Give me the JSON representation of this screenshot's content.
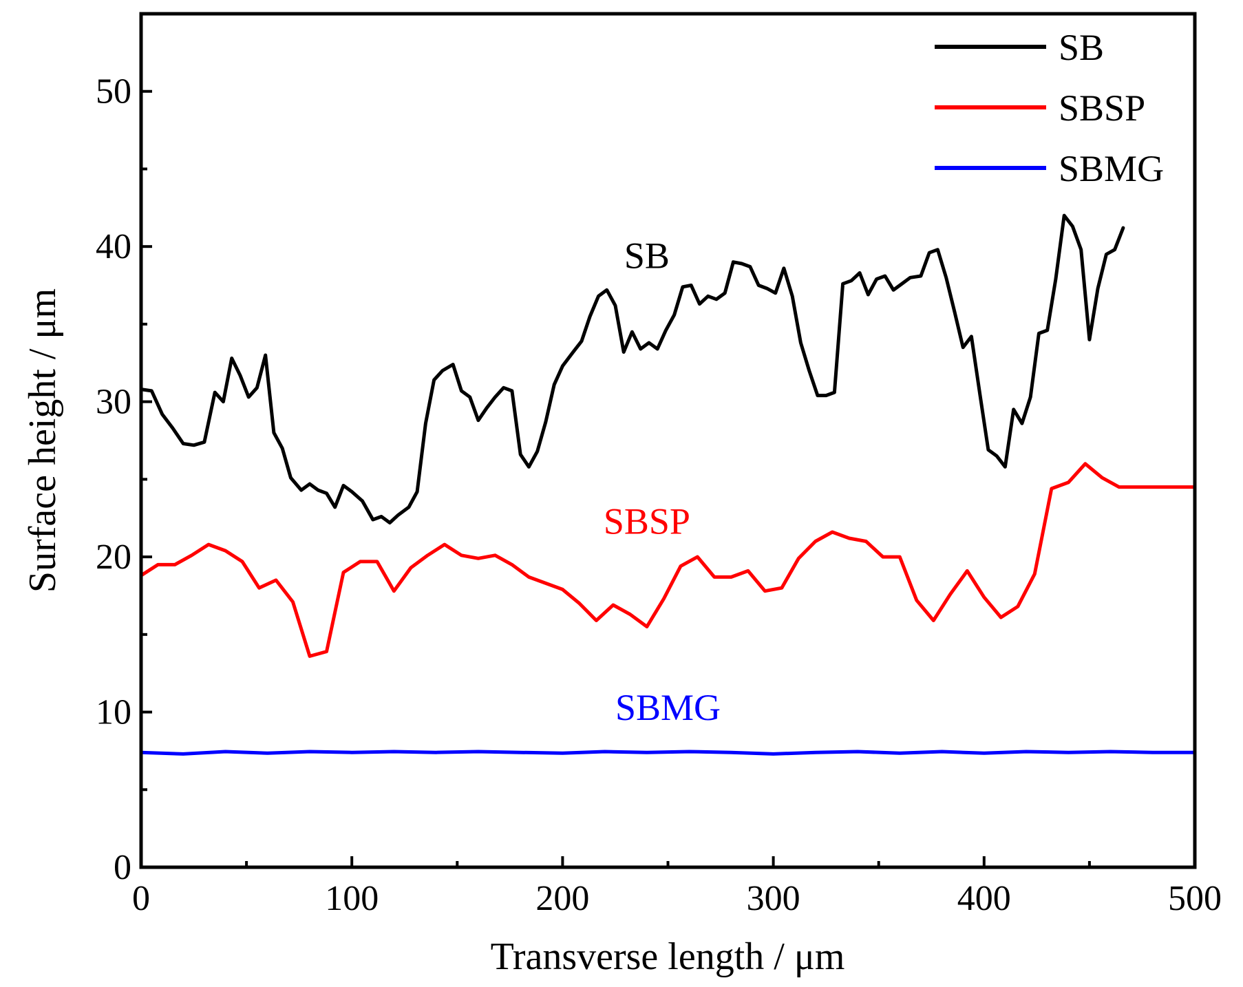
{
  "chart_data": {
    "type": "line",
    "title": "",
    "xlabel": "Transverse length / μm",
    "ylabel": "Surface height / μm",
    "xlim": [
      0,
      500
    ],
    "ylim": [
      0,
      55
    ],
    "x_major_ticks": [
      0,
      100,
      200,
      300,
      400,
      500
    ],
    "x_tick_labels": [
      "0",
      "100",
      "200",
      "300",
      "400",
      "500"
    ],
    "x_minor_ticks": [
      50,
      150,
      250,
      350,
      450
    ],
    "y_major_ticks": [
      0,
      10,
      20,
      30,
      40,
      50
    ],
    "y_tick_labels": [
      "0",
      "10",
      "20",
      "30",
      "40",
      "50"
    ],
    "y_minor_ticks": [
      5,
      15,
      25,
      35,
      45
    ],
    "grid": false,
    "legend_position": "top-right",
    "series": [
      {
        "name": "SB",
        "color": "#000000",
        "label_x": 240,
        "label_y": 38.6,
        "points": [
          [
            0,
            30.8
          ],
          [
            5,
            30.7
          ],
          [
            10,
            29.2
          ],
          [
            15,
            28.3
          ],
          [
            20,
            27.3
          ],
          [
            25,
            27.2
          ],
          [
            30,
            27.4
          ],
          [
            35,
            30.6
          ],
          [
            39,
            30.0
          ],
          [
            43,
            32.8
          ],
          [
            47,
            31.7
          ],
          [
            51,
            30.3
          ],
          [
            55,
            30.9
          ],
          [
            59,
            33.0
          ],
          [
            63,
            28.0
          ],
          [
            67,
            27.0
          ],
          [
            71,
            25.1
          ],
          [
            76,
            24.3
          ],
          [
            80,
            24.7
          ],
          [
            84,
            24.3
          ],
          [
            88,
            24.1
          ],
          [
            92,
            23.2
          ],
          [
            96,
            24.6
          ],
          [
            100,
            24.2
          ],
          [
            105,
            23.6
          ],
          [
            110,
            22.4
          ],
          [
            114,
            22.6
          ],
          [
            118,
            22.2
          ],
          [
            122,
            22.7
          ],
          [
            127,
            23.2
          ],
          [
            131,
            24.2
          ],
          [
            135,
            28.6
          ],
          [
            139,
            31.4
          ],
          [
            143,
            32.0
          ],
          [
            148,
            32.4
          ],
          [
            152,
            30.7
          ],
          [
            156,
            30.3
          ],
          [
            160,
            28.8
          ],
          [
            164,
            29.6
          ],
          [
            168,
            30.3
          ],
          [
            172,
            30.9
          ],
          [
            176,
            30.7
          ],
          [
            180,
            26.6
          ],
          [
            184,
            25.8
          ],
          [
            188,
            26.8
          ],
          [
            192,
            28.7
          ],
          [
            196,
            31.1
          ],
          [
            200,
            32.3
          ],
          [
            205,
            33.2
          ],
          [
            209,
            33.9
          ],
          [
            213,
            35.5
          ],
          [
            217,
            36.8
          ],
          [
            221,
            37.2
          ],
          [
            225,
            36.2
          ],
          [
            229,
            33.2
          ],
          [
            233,
            34.5
          ],
          [
            237,
            33.4
          ],
          [
            241,
            33.8
          ],
          [
            245,
            33.4
          ],
          [
            249,
            34.6
          ],
          [
            253,
            35.6
          ],
          [
            257,
            37.4
          ],
          [
            261,
            37.5
          ],
          [
            265,
            36.3
          ],
          [
            269,
            36.8
          ],
          [
            273,
            36.6
          ],
          [
            277,
            37.0
          ],
          [
            281,
            39.0
          ],
          [
            285,
            38.9
          ],
          [
            289,
            38.7
          ],
          [
            293,
            37.5
          ],
          [
            297,
            37.3
          ],
          [
            301,
            37.0
          ],
          [
            305,
            38.6
          ],
          [
            309,
            36.8
          ],
          [
            313,
            33.8
          ],
          [
            317,
            32.0
          ],
          [
            321,
            30.4
          ],
          [
            325,
            30.4
          ],
          [
            329,
            30.6
          ],
          [
            333,
            37.6
          ],
          [
            337,
            37.8
          ],
          [
            341,
            38.3
          ],
          [
            345,
            36.9
          ],
          [
            349,
            37.9
          ],
          [
            353,
            38.1
          ],
          [
            357,
            37.2
          ],
          [
            361,
            37.6
          ],
          [
            365,
            38.0
          ],
          [
            370,
            38.1
          ],
          [
            374,
            39.6
          ],
          [
            378,
            39.8
          ],
          [
            382,
            38.0
          ],
          [
            386,
            35.8
          ],
          [
            390,
            33.5
          ],
          [
            394,
            34.2
          ],
          [
            398,
            30.5
          ],
          [
            402,
            26.9
          ],
          [
            406,
            26.5
          ],
          [
            410,
            25.8
          ],
          [
            414,
            29.5
          ],
          [
            418,
            28.6
          ],
          [
            422,
            30.3
          ],
          [
            426,
            34.4
          ],
          [
            430,
            34.6
          ],
          [
            434,
            37.9
          ],
          [
            438,
            42.0
          ],
          [
            442,
            41.3
          ],
          [
            446,
            39.8
          ],
          [
            450,
            34.0
          ],
          [
            454,
            37.3
          ],
          [
            458,
            39.5
          ],
          [
            462,
            39.8
          ],
          [
            466,
            41.2
          ]
        ]
      },
      {
        "name": "SBSP",
        "color": "#ff0000",
        "label_x": 240,
        "label_y": 21.5,
        "points": [
          [
            0,
            18.8
          ],
          [
            8,
            19.5
          ],
          [
            16,
            19.5
          ],
          [
            24,
            20.1
          ],
          [
            32,
            20.8
          ],
          [
            40,
            20.4
          ],
          [
            48,
            19.7
          ],
          [
            56,
            18.0
          ],
          [
            64,
            18.5
          ],
          [
            72,
            17.1
          ],
          [
            80,
            13.6
          ],
          [
            88,
            13.9
          ],
          [
            96,
            19.0
          ],
          [
            104,
            19.7
          ],
          [
            112,
            19.7
          ],
          [
            120,
            17.8
          ],
          [
            128,
            19.3
          ],
          [
            136,
            20.1
          ],
          [
            144,
            20.8
          ],
          [
            152,
            20.1
          ],
          [
            160,
            19.9
          ],
          [
            168,
            20.1
          ],
          [
            176,
            19.5
          ],
          [
            184,
            18.7
          ],
          [
            192,
            18.3
          ],
          [
            200,
            17.9
          ],
          [
            208,
            17.0
          ],
          [
            216,
            15.9
          ],
          [
            224,
            16.9
          ],
          [
            232,
            16.3
          ],
          [
            240,
            15.5
          ],
          [
            248,
            17.3
          ],
          [
            256,
            19.4
          ],
          [
            264,
            20.0
          ],
          [
            272,
            18.7
          ],
          [
            280,
            18.7
          ],
          [
            288,
            19.1
          ],
          [
            296,
            17.8
          ],
          [
            304,
            18.0
          ],
          [
            312,
            19.9
          ],
          [
            320,
            21.0
          ],
          [
            328,
            21.6
          ],
          [
            336,
            21.2
          ],
          [
            344,
            21.0
          ],
          [
            352,
            20.0
          ],
          [
            360,
            20.0
          ],
          [
            368,
            17.2
          ],
          [
            376,
            15.9
          ],
          [
            384,
            17.6
          ],
          [
            392,
            19.1
          ],
          [
            400,
            17.4
          ],
          [
            408,
            16.1
          ],
          [
            416,
            16.8
          ],
          [
            424,
            18.9
          ],
          [
            432,
            24.4
          ],
          [
            440,
            24.8
          ],
          [
            448,
            26.0
          ],
          [
            456,
            25.1
          ],
          [
            464,
            24.5
          ],
          [
            472,
            24.5
          ],
          [
            480,
            24.5
          ],
          [
            488,
            24.5
          ],
          [
            496,
            24.5
          ],
          [
            500,
            24.5
          ]
        ]
      },
      {
        "name": "SBMG",
        "color": "#0000ff",
        "label_x": 250,
        "label_y": 9.5,
        "points": [
          [
            0,
            7.4
          ],
          [
            20,
            7.3
          ],
          [
            40,
            7.45
          ],
          [
            60,
            7.35
          ],
          [
            80,
            7.45
          ],
          [
            100,
            7.4
          ],
          [
            120,
            7.45
          ],
          [
            140,
            7.4
          ],
          [
            160,
            7.45
          ],
          [
            180,
            7.4
          ],
          [
            200,
            7.35
          ],
          [
            220,
            7.45
          ],
          [
            240,
            7.4
          ],
          [
            260,
            7.45
          ],
          [
            280,
            7.4
          ],
          [
            300,
            7.3
          ],
          [
            320,
            7.4
          ],
          [
            340,
            7.45
          ],
          [
            360,
            7.35
          ],
          [
            380,
            7.45
          ],
          [
            400,
            7.35
          ],
          [
            420,
            7.45
          ],
          [
            440,
            7.4
          ],
          [
            460,
            7.45
          ],
          [
            480,
            7.4
          ],
          [
            500,
            7.4
          ]
        ]
      }
    ]
  }
}
